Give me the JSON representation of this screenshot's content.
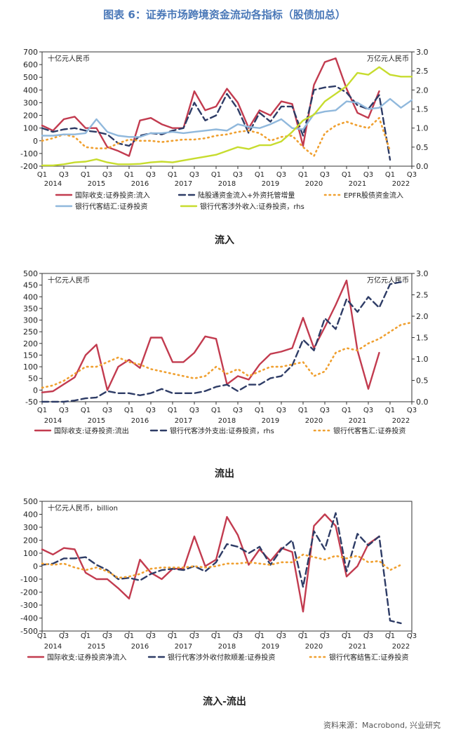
{
  "figure_title": "图表 6：证券市场跨境资金流动各指标（股债加总）",
  "source": "资料来源：Macrobond, 兴业研究",
  "chart_data": [
    {
      "type": "line",
      "label": "流入",
      "unit_left": "十亿元人民币",
      "unit_right": "万亿元人民币",
      "ylim_left": [
        -200,
        700
      ],
      "yticks_left": [
        -200,
        -100,
        0,
        100,
        200,
        300,
        400,
        500,
        600,
        700
      ],
      "ylim_right": [
        0,
        3
      ],
      "yticks_right": [
        "0.0",
        "0.5",
        "1.0",
        "1.5",
        "2.0",
        "2.5",
        "3.0"
      ],
      "quarter_ticks": [
        "Q1",
        "Q3",
        "Q1",
        "Q3",
        "Q1",
        "Q3",
        "Q1",
        "Q3",
        "Q1",
        "Q3",
        "Q1",
        "Q3",
        "Q1",
        "Q3",
        "Q1",
        "Q3",
        "Q1",
        "Q3"
      ],
      "year_labels": [
        "2014",
        "2015",
        "2016",
        "2017",
        "2018",
        "2019",
        "2020",
        "2021",
        "2022"
      ],
      "series": [
        {
          "name": "国际收支:证券投资:流入",
          "color": "#c23b4f",
          "style": "solid",
          "axis": "left",
          "values": [
            120,
            80,
            170,
            190,
            100,
            100,
            -50,
            -80,
            -120,
            160,
            180,
            130,
            100,
            100,
            390,
            240,
            270,
            410,
            300,
            100,
            240,
            200,
            310,
            290,
            -40,
            440,
            620,
            650,
            410,
            220,
            180,
            390
          ]
        },
        {
          "name": "陆股通资金流入+外资托管增量",
          "color": "#2e3c66",
          "style": "dash",
          "axis": "left",
          "values": [
            100,
            70,
            90,
            100,
            80,
            70,
            50,
            -20,
            -40,
            40,
            60,
            50,
            80,
            100,
            300,
            160,
            200,
            370,
            250,
            60,
            220,
            150,
            270,
            270,
            40,
            400,
            420,
            430,
            380,
            280,
            250,
            360,
            -150
          ]
        },
        {
          "name": "EPFR股债资金流入",
          "color": "#f0a030",
          "style": "dot",
          "axis": "left",
          "values": [
            0,
            20,
            50,
            30,
            -50,
            -60,
            -60,
            -20,
            10,
            0,
            0,
            -10,
            0,
            10,
            10,
            20,
            40,
            50,
            70,
            80,
            60,
            0,
            30,
            40,
            -50,
            -120,
            60,
            120,
            150,
            120,
            100,
            180,
            -80
          ]
        },
        {
          "name": "银行代客结汇:证券投资",
          "color": "#90b8dc",
          "style": "solid",
          "axis": "left",
          "values": [
            40,
            40,
            50,
            50,
            60,
            170,
            70,
            40,
            30,
            30,
            60,
            60,
            70,
            60,
            70,
            80,
            90,
            80,
            130,
            110,
            100,
            130,
            170,
            100,
            90,
            210,
            230,
            240,
            310,
            300,
            250,
            260,
            330,
            260,
            320
          ]
        },
        {
          "name": "银行代客涉外收入:证券投资，rhs",
          "color": "#c7dc2e",
          "style": "solid",
          "axis": "right",
          "values": [
            0.02,
            0.02,
            0.05,
            0.1,
            0.12,
            0.18,
            0.1,
            0.05,
            0.05,
            0.06,
            0.1,
            0.12,
            0.1,
            0.15,
            0.2,
            0.25,
            0.3,
            0.4,
            0.5,
            0.45,
            0.55,
            0.55,
            0.65,
            0.9,
            1.2,
            1.35,
            1.7,
            1.9,
            2.1,
            2.45,
            2.4,
            2.6,
            2.4,
            2.35,
            2.35
          ]
        }
      ]
    },
    {
      "type": "line",
      "label": "流出",
      "unit_left": "十亿元人民币",
      "unit_right": "万亿元人民币",
      "ylim_left": [
        -50,
        500
      ],
      "yticks_left": [
        -50,
        0,
        50,
        100,
        150,
        200,
        250,
        300,
        350,
        400,
        450,
        500
      ],
      "ylim_right": [
        0,
        3
      ],
      "yticks_right": [
        "0.0",
        "0.5",
        "1.0",
        "1.5",
        "2.0",
        "2.5",
        "3.0"
      ],
      "quarter_ticks": [
        "Q1",
        "Q3",
        "Q1",
        "Q3",
        "Q1",
        "Q3",
        "Q1",
        "Q3",
        "Q1",
        "Q3",
        "Q1",
        "Q3",
        "Q1",
        "Q3",
        "Q1",
        "Q3",
        "Q1",
        "Q3"
      ],
      "year_labels": [
        "2014",
        "2015",
        "2016",
        "2017",
        "2018",
        "2019",
        "2020",
        "2021",
        "2022"
      ],
      "series": [
        {
          "name": "国际收支:证券投资:流出",
          "color": "#c23b4f",
          "style": "solid",
          "axis": "left",
          "values": [
            -10,
            -5,
            25,
            55,
            150,
            195,
            0,
            100,
            130,
            95,
            225,
            225,
            120,
            120,
            160,
            230,
            220,
            25,
            60,
            45,
            110,
            155,
            165,
            180,
            310,
            180,
            270,
            365,
            470,
            170,
            5,
            160
          ]
        },
        {
          "name": "银行代客涉外支出:证券投资，rhs",
          "color": "#2e3c66",
          "style": "dash",
          "axis": "right",
          "values": [
            0.0,
            0.0,
            0.0,
            0.03,
            0.08,
            0.1,
            0.25,
            0.2,
            0.2,
            0.15,
            0.2,
            0.3,
            0.2,
            0.2,
            0.2,
            0.25,
            0.35,
            0.4,
            0.25,
            0.4,
            0.4,
            0.55,
            0.6,
            0.85,
            1.45,
            1.2,
            1.95,
            1.7,
            2.4,
            2.1,
            2.45,
            2.2,
            2.75,
            2.8
          ]
        },
        {
          "name": "银行代客售汇:证券投资",
          "color": "#f0a030",
          "style": "dot",
          "axis": "left",
          "values": [
            10,
            20,
            40,
            70,
            100,
            100,
            120,
            140,
            120,
            110,
            90,
            80,
            70,
            60,
            50,
            60,
            100,
            70,
            90,
            60,
            80,
            100,
            100,
            110,
            120,
            60,
            80,
            160,
            180,
            170,
            200,
            220,
            250,
            280,
            290
          ]
        }
      ]
    },
    {
      "type": "line",
      "label": "流入-流出",
      "unit_left": "十亿元人民币，billion",
      "ylim_left": [
        -500,
        500
      ],
      "yticks_left": [
        -500,
        -400,
        -300,
        -200,
        -100,
        0,
        100,
        200,
        300,
        400,
        500
      ],
      "quarter_ticks": [
        "Q1",
        "Q3",
        "Q1",
        "Q3",
        "Q1",
        "Q3",
        "Q1",
        "Q3",
        "Q1",
        "Q3",
        "Q1",
        "Q3",
        "Q1",
        "Q3",
        "Q1",
        "Q3",
        "Q1",
        "Q3"
      ],
      "year_labels": [
        "2014",
        "2015",
        "2016",
        "2017",
        "2018",
        "2019",
        "2020",
        "2021",
        "2022"
      ],
      "series": [
        {
          "name": "国际收支:证券投资净流入",
          "color": "#c23b4f",
          "style": "solid",
          "axis": "left",
          "values": [
            130,
            90,
            140,
            130,
            -50,
            -100,
            -100,
            -170,
            -250,
            50,
            -50,
            -100,
            -20,
            -20,
            230,
            0,
            50,
            380,
            240,
            10,
            130,
            40,
            140,
            110,
            -350,
            310,
            400,
            310,
            -80,
            0,
            170,
            230
          ]
        },
        {
          "name": "银行代客涉外收付款顺差:证券投资",
          "color": "#2e3c66",
          "style": "dash",
          "axis": "left",
          "values": [
            10,
            20,
            60,
            60,
            70,
            10,
            -30,
            -100,
            -90,
            -110,
            -60,
            -30,
            -20,
            -30,
            0,
            -40,
            30,
            170,
            150,
            100,
            150,
            10,
            130,
            200,
            -160,
            270,
            130,
            410,
            -40,
            250,
            160,
            230,
            -420,
            -440
          ]
        },
        {
          "name": "银行代客结售汇:证券投资",
          "color": "#f0a030",
          "style": "dot",
          "axis": "left",
          "values": [
            20,
            10,
            20,
            -10,
            -30,
            -10,
            -40,
            -90,
            -80,
            -60,
            -20,
            -10,
            -10,
            -10,
            0,
            -10,
            0,
            20,
            20,
            30,
            20,
            10,
            30,
            30,
            90,
            70,
            50,
            80,
            60,
            80,
            30,
            40,
            -30,
            10
          ]
        }
      ]
    }
  ]
}
